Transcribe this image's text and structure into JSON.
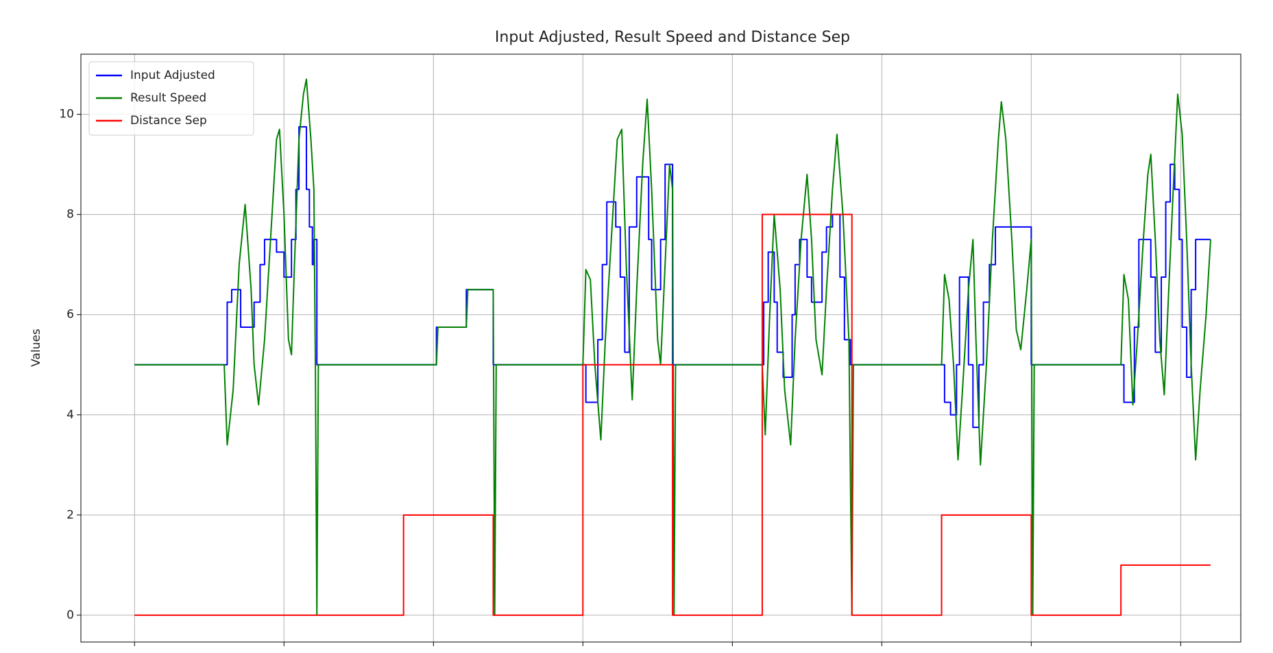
{
  "chart_data": {
    "type": "line",
    "title": "Input Adjusted, Result Speed and Distance Sep",
    "ylabel": "Values",
    "xlim": [
      -0.359,
      7.402
    ],
    "xticks": [
      0,
      1,
      2,
      3,
      4,
      5,
      6,
      7
    ],
    "ylim": [
      -0.536,
      11.2
    ],
    "yticks": [
      0,
      2,
      4,
      6,
      8,
      10
    ],
    "grid": true,
    "legend": "upper left",
    "series": [
      {
        "name": "Input Adjusted",
        "color": "#0000ff",
        "drawstyle": "steps-post",
        "x": [
          0,
          0.62,
          0.65,
          0.71,
          0.8,
          0.84,
          0.87,
          0.95,
          1.0,
          1.05,
          1.08,
          1.1,
          1.15,
          1.17,
          1.19,
          1.2,
          1.22,
          2.02,
          2.22,
          2.4,
          3.02,
          3.1,
          3.13,
          3.16,
          3.22,
          3.25,
          3.28,
          3.31,
          3.36,
          3.44,
          3.46,
          3.52,
          3.55,
          3.6,
          4.21,
          4.24,
          4.28,
          4.3,
          4.34,
          4.4,
          4.42,
          4.45,
          4.5,
          4.53,
          4.6,
          4.63,
          4.67,
          4.72,
          4.75,
          4.79,
          5.42,
          5.46,
          5.5,
          5.52,
          5.58,
          5.61,
          5.65,
          5.68,
          5.72,
          5.76,
          6.0,
          6.62,
          6.69,
          6.72,
          6.8,
          6.83,
          6.87,
          6.9,
          6.93,
          6.96,
          6.99,
          7.01,
          7.04,
          7.07,
          7.1,
          7.2
        ],
        "values": [
          5,
          6.25,
          6.5,
          5.75,
          6.25,
          7.0,
          7.5,
          7.25,
          6.75,
          7.5,
          8.5,
          9.75,
          8.5,
          7.75,
          7.0,
          7.5,
          5,
          5.75,
          6.5,
          5,
          4.25,
          5.5,
          7,
          8.25,
          7.75,
          6.75,
          5.25,
          7.75,
          8.75,
          7.5,
          6.5,
          7.5,
          9,
          5,
          6.25,
          7.25,
          6.25,
          5.25,
          4.75,
          6,
          7,
          7.5,
          6.75,
          6.25,
          7.25,
          7.75,
          8,
          6.75,
          5.5,
          5,
          4.25,
          4,
          5,
          6.75,
          5,
          3.75,
          5,
          6.25,
          7,
          7.75,
          5,
          4.25,
          5.75,
          7.5,
          6.75,
          5.25,
          6.75,
          8.25,
          9,
          8.5,
          7.5,
          5.75,
          4.75,
          6.5,
          7.5,
          7.5
        ]
      },
      {
        "name": "Result Speed",
        "color": "#008000",
        "drawstyle": "default",
        "x": [
          0,
          0.6,
          0.62,
          0.66,
          0.7,
          0.74,
          0.78,
          0.8,
          0.83,
          0.87,
          0.91,
          0.95,
          0.97,
          1.0,
          1.03,
          1.05,
          1.07,
          1.1,
          1.13,
          1.15,
          1.18,
          1.2,
          1.21,
          1.22,
          1.23,
          2.02,
          2.03,
          2.22,
          2.23,
          2.4,
          2.41,
          2.42,
          3.0,
          3.02,
          3.05,
          3.08,
          3.12,
          3.15,
          3.19,
          3.23,
          3.26,
          3.29,
          3.33,
          3.36,
          3.4,
          3.43,
          3.46,
          3.5,
          3.52,
          3.55,
          3.58,
          3.6,
          3.61,
          3.62,
          4.2,
          4.22,
          4.25,
          4.28,
          4.32,
          4.35,
          4.39,
          4.42,
          4.46,
          4.5,
          4.53,
          4.56,
          4.6,
          4.63,
          4.67,
          4.7,
          4.74,
          4.78,
          4.8,
          4.81,
          5.4,
          5.42,
          5.45,
          5.48,
          5.51,
          5.54,
          5.58,
          5.61,
          5.63,
          5.66,
          5.7,
          5.74,
          5.78,
          5.8,
          5.83,
          5.87,
          5.9,
          5.93,
          5.97,
          6.0,
          6.01,
          6.02,
          6.6,
          6.62,
          6.65,
          6.68,
          6.71,
          6.75,
          6.78,
          6.8,
          6.83,
          6.86,
          6.89,
          6.92,
          6.95,
          6.98,
          7.01,
          7.04,
          7.07,
          7.1,
          7.13,
          7.17,
          7.2
        ],
        "values": [
          5,
          5,
          3.4,
          4.5,
          7,
          8.2,
          6.5,
          5,
          4.2,
          5.5,
          7.5,
          9.5,
          9.7,
          8,
          5.5,
          5.2,
          7,
          9.5,
          10.4,
          10.7,
          9.5,
          8.5,
          5,
          0,
          5,
          5,
          5.75,
          5.75,
          6.5,
          6.5,
          0,
          5,
          5,
          6.9,
          6.7,
          5,
          3.5,
          5.5,
          7.5,
          9.5,
          9.7,
          7,
          4.3,
          6.5,
          9,
          10.3,
          8.5,
          5.5,
          5,
          7,
          9,
          8.5,
          0,
          5,
          5,
          3.6,
          6,
          8,
          6.5,
          4.5,
          3.4,
          5.5,
          7.5,
          8.8,
          7.5,
          5.5,
          4.8,
          6.5,
          8.5,
          9.6,
          8,
          5.5,
          0,
          5,
          5,
          6.8,
          6.3,
          5,
          3.1,
          4.5,
          6.5,
          7.5,
          5.5,
          3.0,
          5,
          7.5,
          9.5,
          10.25,
          9.5,
          7.5,
          5.7,
          5.3,
          6.5,
          7.5,
          0,
          5,
          5,
          6.8,
          6.3,
          4.2,
          5.5,
          7.5,
          8.8,
          9.2,
          7.5,
          5.5,
          4.4,
          6.5,
          8.5,
          10.4,
          9.6,
          7.5,
          5,
          3.1,
          4.5,
          6,
          7.5
        ]
      },
      {
        "name": "Distance Sep",
        "color": "#ff0000",
        "drawstyle": "steps-post",
        "x": [
          0,
          1.8,
          2.4,
          3.0,
          3.6,
          4.2,
          4.8,
          5.4,
          6.0,
          6.6,
          7.2
        ],
        "values": [
          0,
          2,
          0,
          5,
          0,
          8,
          0,
          2,
          0,
          1,
          1
        ]
      }
    ]
  }
}
